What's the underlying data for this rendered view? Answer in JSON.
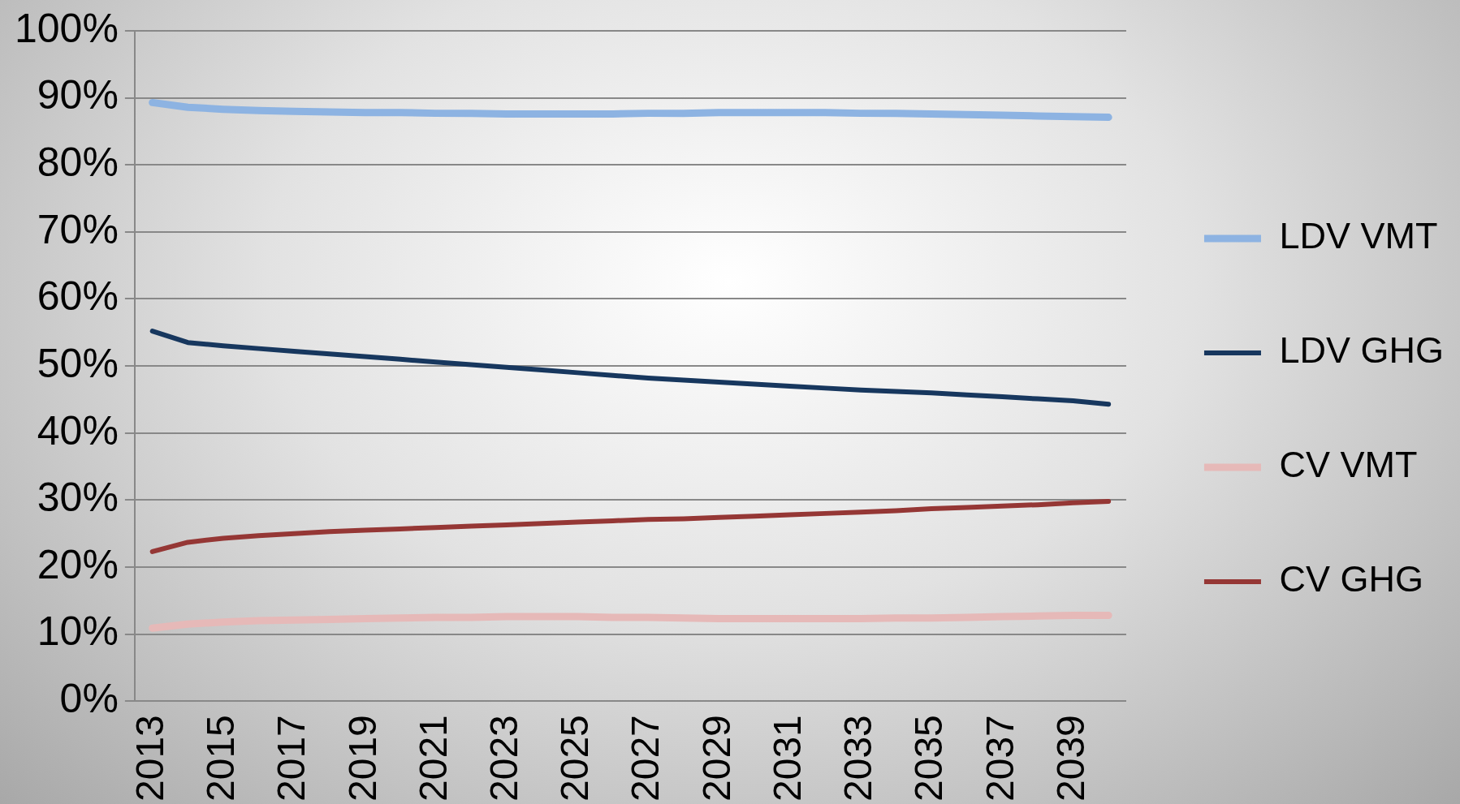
{
  "chart_data": {
    "type": "line",
    "categories": [
      "2013",
      null,
      "2015",
      null,
      "2017",
      null,
      "2019",
      null,
      "2021",
      null,
      "2023",
      null,
      "2025",
      null,
      "2027",
      null,
      "2029",
      null,
      "2031",
      null,
      "2033",
      null,
      "2035",
      null,
      "2037",
      null,
      "2039",
      null
    ],
    "series": [
      {
        "name": "LDV VMT",
        "color": "#8db3e2",
        "values": [
          89.3,
          88.6,
          88.3,
          88.1,
          88.0,
          87.9,
          87.8,
          87.8,
          87.7,
          87.7,
          87.6,
          87.6,
          87.6,
          87.6,
          87.7,
          87.7,
          87.8,
          87.8,
          87.8,
          87.8,
          87.7,
          87.7,
          87.6,
          87.5,
          87.4,
          87.3,
          87.2,
          87.1
        ]
      },
      {
        "name": "LDV GHG",
        "color": "#17375e",
        "values": [
          55.2,
          53.5,
          53.0,
          52.6,
          52.2,
          51.8,
          51.4,
          51.0,
          50.6,
          50.2,
          49.8,
          49.4,
          49.0,
          48.6,
          48.2,
          47.9,
          47.6,
          47.3,
          47.0,
          46.7,
          46.4,
          46.2,
          46.0,
          45.7,
          45.4,
          45.1,
          44.8,
          44.3
        ]
      },
      {
        "name": "CV VMT",
        "color": "#e6b9b8",
        "values": [
          10.9,
          11.5,
          11.8,
          12.0,
          12.1,
          12.2,
          12.3,
          12.4,
          12.5,
          12.5,
          12.6,
          12.6,
          12.6,
          12.5,
          12.5,
          12.4,
          12.3,
          12.3,
          12.3,
          12.3,
          12.3,
          12.4,
          12.4,
          12.5,
          12.6,
          12.7,
          12.8,
          12.8
        ]
      },
      {
        "name": "CV GHG",
        "color": "#953735",
        "values": [
          22.3,
          23.7,
          24.3,
          24.7,
          25.0,
          25.3,
          25.5,
          25.7,
          25.9,
          26.1,
          26.3,
          26.5,
          26.7,
          26.9,
          27.1,
          27.2,
          27.4,
          27.6,
          27.8,
          28.0,
          28.2,
          28.4,
          28.7,
          28.9,
          29.1,
          29.3,
          29.6,
          29.8
        ]
      }
    ],
    "ylim": [
      0,
      100
    ],
    "yticks": [
      {
        "value": 0,
        "label": "0%"
      },
      {
        "value": 10,
        "label": "10%"
      },
      {
        "value": 20,
        "label": "20%"
      },
      {
        "value": 30,
        "label": "30%"
      },
      {
        "value": 40,
        "label": "40%"
      },
      {
        "value": 50,
        "label": "50%"
      },
      {
        "value": 60,
        "label": "60%"
      },
      {
        "value": 70,
        "label": "70%"
      },
      {
        "value": 80,
        "label": "80%"
      },
      {
        "value": 90,
        "label": "90%"
      },
      {
        "value": 100,
        "label": "100%"
      }
    ],
    "grid": "y",
    "legend": "right",
    "marker": "none",
    "line_style": "solid"
  }
}
